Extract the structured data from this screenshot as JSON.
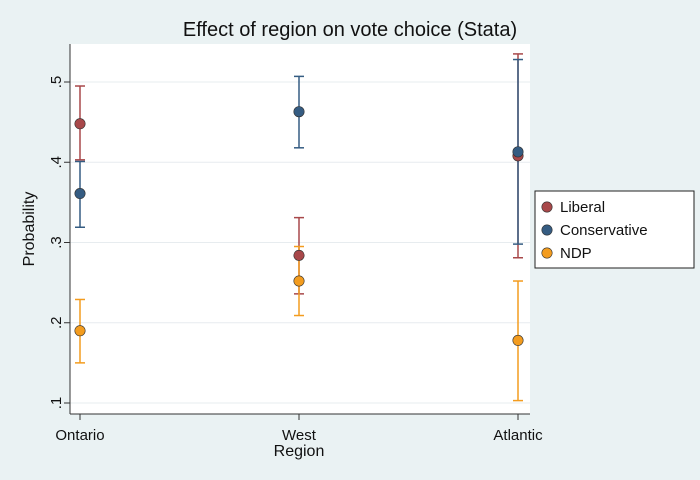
{
  "chart_data": {
    "type": "scatter",
    "title": "Effect of region on vote choice (Stata)",
    "xlabel": "Region",
    "ylabel": "Probability",
    "categories": [
      "Ontario",
      "West",
      "Atlantic"
    ],
    "ylim": [
      0.1,
      0.5
    ],
    "yticks": [
      0.1,
      0.2,
      0.3,
      0.4,
      0.5
    ],
    "ytick_labels": [
      ".1",
      ".2",
      ".3",
      ".4",
      ".5"
    ],
    "grid": true,
    "legend_position": "right",
    "series": [
      {
        "name": "Liberal",
        "color": "#a8484a",
        "values": [
          0.448,
          0.284,
          0.408
        ],
        "ci_lower": [
          0.403,
          0.236,
          0.281
        ],
        "ci_upper": [
          0.495,
          0.331,
          0.535
        ]
      },
      {
        "name": "Conservative",
        "color": "#355c82",
        "values": [
          0.361,
          0.463,
          0.413
        ],
        "ci_lower": [
          0.319,
          0.418,
          0.298
        ],
        "ci_upper": [
          0.401,
          0.507,
          0.528
        ]
      },
      {
        "name": "NDP",
        "color": "#f39c1f",
        "values": [
          0.19,
          0.252,
          0.178
        ],
        "ci_lower": [
          0.15,
          0.209,
          0.103
        ],
        "ci_upper": [
          0.229,
          0.295,
          0.252
        ]
      }
    ]
  }
}
